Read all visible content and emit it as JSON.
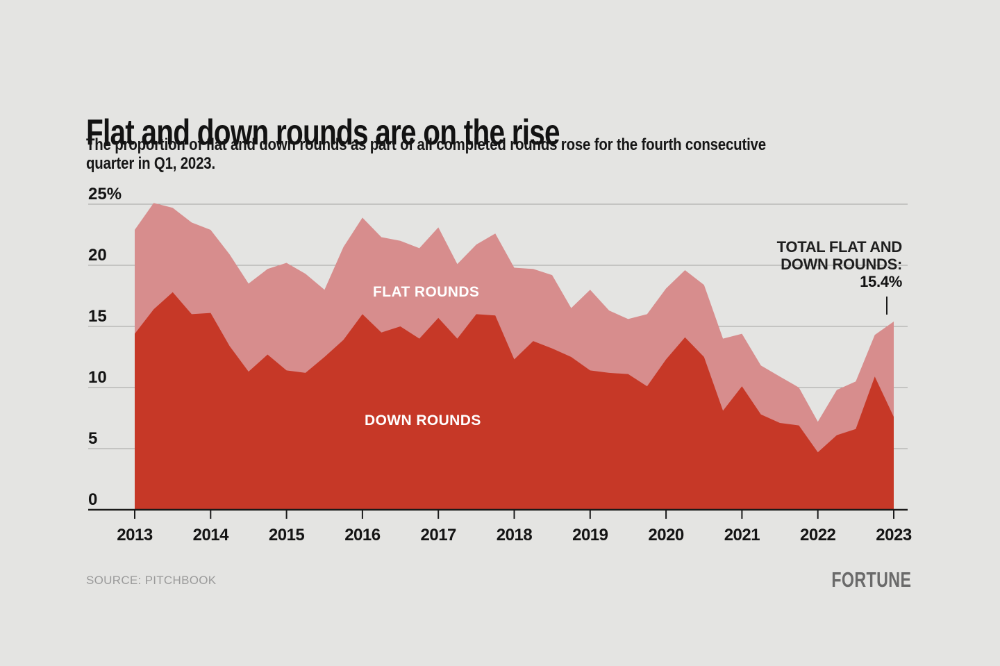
{
  "header": {
    "title": "Flat and down rounds are on the rise",
    "subtitle_line1": "The proportion of flat and down rounds as part of all completed rounds rose for the fourth consecutive",
    "subtitle_line2": "quarter in Q1, 2023."
  },
  "chart": {
    "flat_label": "FLAT ROUNDS",
    "down_label": "DOWN ROUNDS",
    "annotation": {
      "line1": "TOTAL FLAT AND",
      "line2": "DOWN ROUNDS:",
      "value": "15.4%"
    }
  },
  "chart_data": {
    "type": "area",
    "stacked": true,
    "unit": "percent",
    "title": "Flat and down rounds are on the rise",
    "categories": [
      "2013 Q1",
      "2013 Q2",
      "2013 Q3",
      "2013 Q4",
      "2014 Q1",
      "2014 Q2",
      "2014 Q3",
      "2014 Q4",
      "2015 Q1",
      "2015 Q2",
      "2015 Q3",
      "2015 Q4",
      "2016 Q1",
      "2016 Q2",
      "2016 Q3",
      "2016 Q4",
      "2017 Q1",
      "2017 Q2",
      "2017 Q3",
      "2017 Q4",
      "2018 Q1",
      "2018 Q2",
      "2018 Q3",
      "2018 Q4",
      "2019 Q1",
      "2019 Q2",
      "2019 Q3",
      "2019 Q4",
      "2020 Q1",
      "2020 Q2",
      "2020 Q3",
      "2020 Q4",
      "2021 Q1",
      "2021 Q2",
      "2021 Q3",
      "2021 Q4",
      "2022 Q1",
      "2022 Q2",
      "2022 Q3",
      "2022 Q4",
      "2023 Q1"
    ],
    "series": [
      {
        "name": "DOWN ROUNDS",
        "color": "#c63827",
        "values": [
          14.4,
          16.4,
          17.8,
          16.0,
          16.1,
          13.4,
          11.3,
          12.7,
          11.4,
          11.2,
          12.5,
          13.9,
          16.0,
          14.5,
          15.0,
          14.0,
          15.7,
          14.0,
          16.0,
          15.9,
          12.3,
          13.8,
          13.2,
          12.5,
          11.4,
          11.2,
          11.1,
          10.1,
          12.3,
          14.1,
          12.5,
          8.1,
          10.1,
          7.8,
          7.1,
          6.9,
          4.7,
          6.1,
          6.6,
          10.9,
          7.6
        ]
      },
      {
        "name": "FLAT ROUNDS",
        "color": "#d78d8d",
        "values": [
          8.5,
          8.7,
          6.9,
          7.5,
          6.8,
          7.5,
          7.2,
          7.0,
          8.8,
          8.1,
          5.5,
          7.6,
          7.9,
          7.8,
          7.0,
          7.4,
          7.4,
          6.1,
          5.7,
          6.7,
          7.5,
          5.9,
          6.0,
          4.0,
          6.6,
          5.1,
          4.5,
          5.9,
          5.8,
          5.5,
          5.9,
          5.9,
          4.3,
          4.0,
          3.8,
          3.1,
          2.5,
          3.7,
          3.9,
          3.4,
          7.8
        ]
      }
    ],
    "total_flat_and_down_last": 15.4,
    "ylim": [
      0,
      25
    ],
    "yticks": [
      0,
      5,
      10,
      15,
      20,
      25
    ],
    "ytick_labels": [
      "0",
      "5",
      "10",
      "15",
      "20",
      "25%"
    ],
    "xtick_labels": [
      "2013",
      "2014",
      "2015",
      "2016",
      "2017",
      "2018",
      "2019",
      "2020",
      "2021",
      "2022",
      "2023"
    ],
    "xtick_indices": [
      0,
      4,
      8,
      12,
      16,
      20,
      24,
      28,
      32,
      36,
      40
    ],
    "grid": "horizontal",
    "legend_position": "inline-labels",
    "colors": {
      "background": "#e4e4e2",
      "gridline": "#a3a3a1",
      "axis": "#1a1a1a",
      "tick_text": "#141414",
      "down_area": "#c63827",
      "flat_area": "#d78d8d"
    }
  },
  "footer": {
    "source": "SOURCE: PITCHBOOK",
    "brand": "FORTUNE"
  }
}
